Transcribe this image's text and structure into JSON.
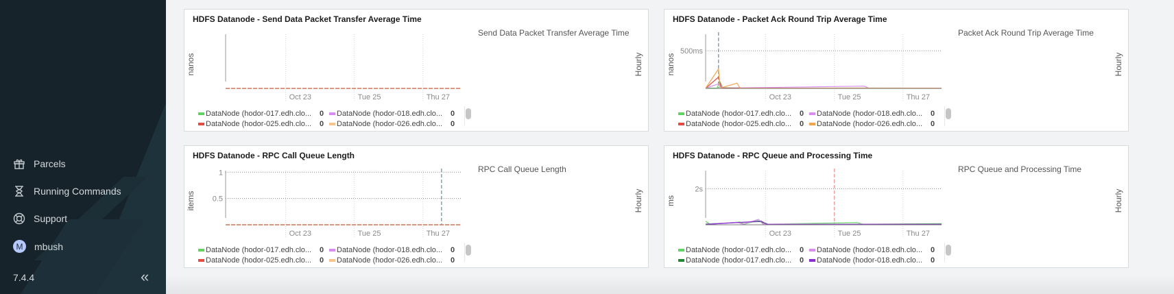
{
  "sidebar": {
    "items": [
      {
        "label": "Parcels",
        "icon": "gift-icon"
      },
      {
        "label": "Running Commands",
        "icon": "hourglass-icon"
      },
      {
        "label": "Support",
        "icon": "lifebuoy-icon"
      },
      {
        "label": "mbush",
        "icon": "avatar",
        "initial": "M"
      }
    ],
    "version": "7.4.4",
    "collapse_icon": "double-chevron-left-icon"
  },
  "chart_data": [
    {
      "type": "line",
      "title": "HDFS Datanode - Send Data Packet Transfer Average Time",
      "legend_title": "Send Data Packet Transfer Average Time",
      "ylabel": "nanos",
      "side_label": "Hourly",
      "xlim": [
        "Oct 21 06:00",
        "Oct 28 03:00"
      ],
      "xticks": [
        {
          "label": "Oct 23",
          "x": "Oct 23 00:00"
        },
        {
          "label": "Tue 25",
          "x": "Oct 25 00:00"
        },
        {
          "label": "Thu 27",
          "x": "Oct 27 00:00"
        }
      ],
      "ylim": [
        0,
        1
      ],
      "yticks": [],
      "grid": "vertical dotted",
      "series": [
        {
          "name": "DataNode (hodor-017.edh.clo...",
          "color": "#5cd65c",
          "value": "0",
          "points": [
            [
              "Oct 21 06:00",
              0
            ],
            [
              "Oct 28 03:00",
              0
            ]
          ]
        },
        {
          "name": "DataNode (hodor-018.edh.clo...",
          "color": "#d98cf2",
          "value": "0",
          "points": [
            [
              "Oct 21 06:00",
              0
            ],
            [
              "Oct 28 03:00",
              0
            ]
          ]
        },
        {
          "name": "DataNode (hodor-025.edh.clo...",
          "color": "#e84a3c",
          "value": "0",
          "points": [
            [
              "Oct 21 06:00",
              0
            ],
            [
              "Oct 28 03:00",
              0
            ]
          ]
        },
        {
          "name": "DataNode (hodor-026.edh.clo...",
          "color": "#f7c58c",
          "value": "0",
          "points": [
            [
              "Oct 21 06:00",
              0
            ],
            [
              "Oct 28 03:00",
              0
            ]
          ]
        }
      ]
    },
    {
      "type": "line",
      "title": "HDFS Datanode - Packet Ack Round Trip Average Time",
      "legend_title": "Packet Ack Round Trip Average Time",
      "ylabel": "nanos",
      "side_label": "Hourly",
      "xlim": [
        "Oct 21 06:00",
        "Oct 28 03:00"
      ],
      "xticks": [
        {
          "label": "Oct 23",
          "x": "Oct 23 00:00"
        },
        {
          "label": "Tue 25",
          "x": "Oct 25 00:00"
        },
        {
          "label": "Thu 27",
          "x": "Oct 27 00:00"
        }
      ],
      "ylim": [
        0,
        720
      ],
      "yticks": [
        {
          "label": "500ms",
          "y": 500
        }
      ],
      "grid": "dotted",
      "series": [
        {
          "name": "DataNode (hodor-017.edh.clo...",
          "color": "#5cd65c",
          "value": "0",
          "points": [
            [
              "Oct 21 06:00",
              5
            ],
            [
              "Oct 21 14:00",
              4
            ],
            [
              "Oct 21 16:00",
              90
            ],
            [
              "Oct 21 18:00",
              10
            ],
            [
              "Oct 22 12:00",
              4
            ],
            [
              "Oct 25 12:00",
              5
            ],
            [
              "Oct 28 03:00",
              4
            ]
          ]
        },
        {
          "name": "DataNode (hodor-018.edh.clo...",
          "color": "#d98cf2",
          "value": "0",
          "points": [
            [
              "Oct 21 06:00",
              3
            ],
            [
              "Oct 21 15:00",
              60
            ],
            [
              "Oct 21 19:00",
              5
            ],
            [
              "Oct 25 21:00",
              30
            ],
            [
              "Oct 26 00:00",
              4
            ],
            [
              "Oct 28 03:00",
              3
            ]
          ]
        },
        {
          "name": "DataNode (hodor-025.edh.clo...",
          "color": "#e84a3c",
          "value": "0",
          "points": [
            [
              "Oct 21 06:00",
              2
            ],
            [
              "Oct 21 15:00",
              150
            ],
            [
              "Oct 21 17:00",
              4
            ],
            [
              "Oct 28 03:00",
              2
            ]
          ]
        },
        {
          "name": "DataNode (hodor-026.edh.clo...",
          "color": "#f7a24c",
          "value": "0",
          "points": [
            [
              "Oct 21 06:00",
              3
            ],
            [
              "Oct 21 15:00",
              260
            ],
            [
              "Oct 21 16:00",
              4
            ],
            [
              "Oct 22 04:00",
              70
            ],
            [
              "Oct 22 06:00",
              3
            ],
            [
              "Oct 28 03:00",
              3
            ]
          ]
        }
      ],
      "spike": {
        "x": "Oct 21 15:00",
        "color": "#7fa3b8"
      }
    },
    {
      "type": "line",
      "title": "HDFS Datanode - RPC Call Queue Length",
      "legend_title": "RPC Call Queue Length",
      "ylabel": "items",
      "side_label": "Hourly",
      "xlim": [
        "Oct 21 06:00",
        "Oct 28 03:00"
      ],
      "xticks": [
        {
          "label": "Oct 23",
          "x": "Oct 23 00:00"
        },
        {
          "label": "Tue 25",
          "x": "Oct 25 00:00"
        },
        {
          "label": "Thu 27",
          "x": "Oct 27 00:00"
        }
      ],
      "ylim": [
        0,
        1.03
      ],
      "yticks": [
        {
          "label": "1",
          "y": 1
        },
        {
          "label": "0.5",
          "y": 0.5
        }
      ],
      "grid": "dotted",
      "series": [
        {
          "name": "DataNode (hodor-017.edh.clo...",
          "color": "#5cd65c",
          "value": "0",
          "points": [
            [
              "Oct 21 06:00",
              0
            ],
            [
              "Oct 28 03:00",
              0
            ]
          ]
        },
        {
          "name": "DataNode (hodor-018.edh.clo...",
          "color": "#d98cf2",
          "value": "0",
          "points": [
            [
              "Oct 21 06:00",
              0
            ],
            [
              "Oct 28 03:00",
              0
            ]
          ]
        },
        {
          "name": "DataNode (hodor-025.edh.clo...",
          "color": "#e84a3c",
          "value": "0",
          "points": [
            [
              "Oct 21 06:00",
              0
            ],
            [
              "Oct 28 03:00",
              0
            ]
          ]
        },
        {
          "name": "DataNode (hodor-026.edh.clo...",
          "color": "#f7c58c",
          "value": "0",
          "points": [
            [
              "Oct 21 06:00",
              0
            ],
            [
              "Oct 28 03:00",
              0
            ]
          ]
        }
      ],
      "spike": {
        "x": "Oct 27 13:00",
        "color": "#7fa3b8"
      }
    },
    {
      "type": "line",
      "title": "HDFS Datanode - RPC Queue and Processing Time",
      "legend_title": "RPC Queue and Processing Time",
      "ylabel": "ms",
      "side_label": "Hourly",
      "xlim": [
        "Oct 21 06:00",
        "Oct 28 03:00"
      ],
      "xticks": [
        {
          "label": "Oct 23",
          "x": "Oct 23 00:00"
        },
        {
          "label": "Tue 25",
          "x": "Oct 25 00:00"
        },
        {
          "label": "Thu 27",
          "x": "Oct 27 00:00"
        }
      ],
      "ylim": [
        0,
        3000
      ],
      "yticks": [
        {
          "label": "2s",
          "y": 2000
        }
      ],
      "grid": "dotted",
      "series": [
        {
          "name": "DataNode (hodor-017.edh.clo...",
          "color": "#5cd65c",
          "value": "0",
          "points": [
            [
              "Oct 21 06:00",
              200
            ],
            [
              "Oct 21 09:00",
              30
            ],
            [
              "Oct 22 06:00",
              150
            ],
            [
              "Oct 22 09:00",
              30
            ],
            [
              "Oct 22 18:00",
              250
            ],
            [
              "Oct 23 00:00",
              30
            ],
            [
              "Oct 25 16:00",
              120
            ],
            [
              "Oct 25 20:00",
              30
            ],
            [
              "Oct 28 03:00",
              60
            ]
          ]
        },
        {
          "name": "DataNode (hodor-017.edh.clo...",
          "color": "#1f8a2e",
          "value": "0",
          "points": [
            [
              "Oct 21 06:00",
              40
            ],
            [
              "Oct 22 20:00",
              180
            ],
            [
              "Oct 23 02:00",
              30
            ],
            [
              "Oct 28 03:00",
              40
            ]
          ]
        },
        {
          "name": "DataNode (hodor-018.edh.clo...",
          "color": "#d98cf2",
          "value": "0",
          "points": [
            [
              "Oct 21 06:00",
              30
            ],
            [
              "Oct 22 04:00",
              140
            ],
            [
              "Oct 22 08:00",
              30
            ],
            [
              "Oct 22 19:00",
              300
            ],
            [
              "Oct 22 22:00",
              40
            ],
            [
              "Oct 28 03:00",
              30
            ]
          ]
        },
        {
          "name": "DataNode (hodor-018.edh.clo...",
          "color": "#8a2ed0",
          "value": "0",
          "points": [
            [
              "Oct 21 06:00",
              20
            ],
            [
              "Oct 22 21:00",
              200
            ],
            [
              "Oct 23 01:00",
              20
            ],
            [
              "Oct 28 03:00",
              20
            ]
          ]
        }
      ],
      "spike": {
        "x": "Oct 25 00:00",
        "color": "#f4a0a0"
      }
    }
  ]
}
